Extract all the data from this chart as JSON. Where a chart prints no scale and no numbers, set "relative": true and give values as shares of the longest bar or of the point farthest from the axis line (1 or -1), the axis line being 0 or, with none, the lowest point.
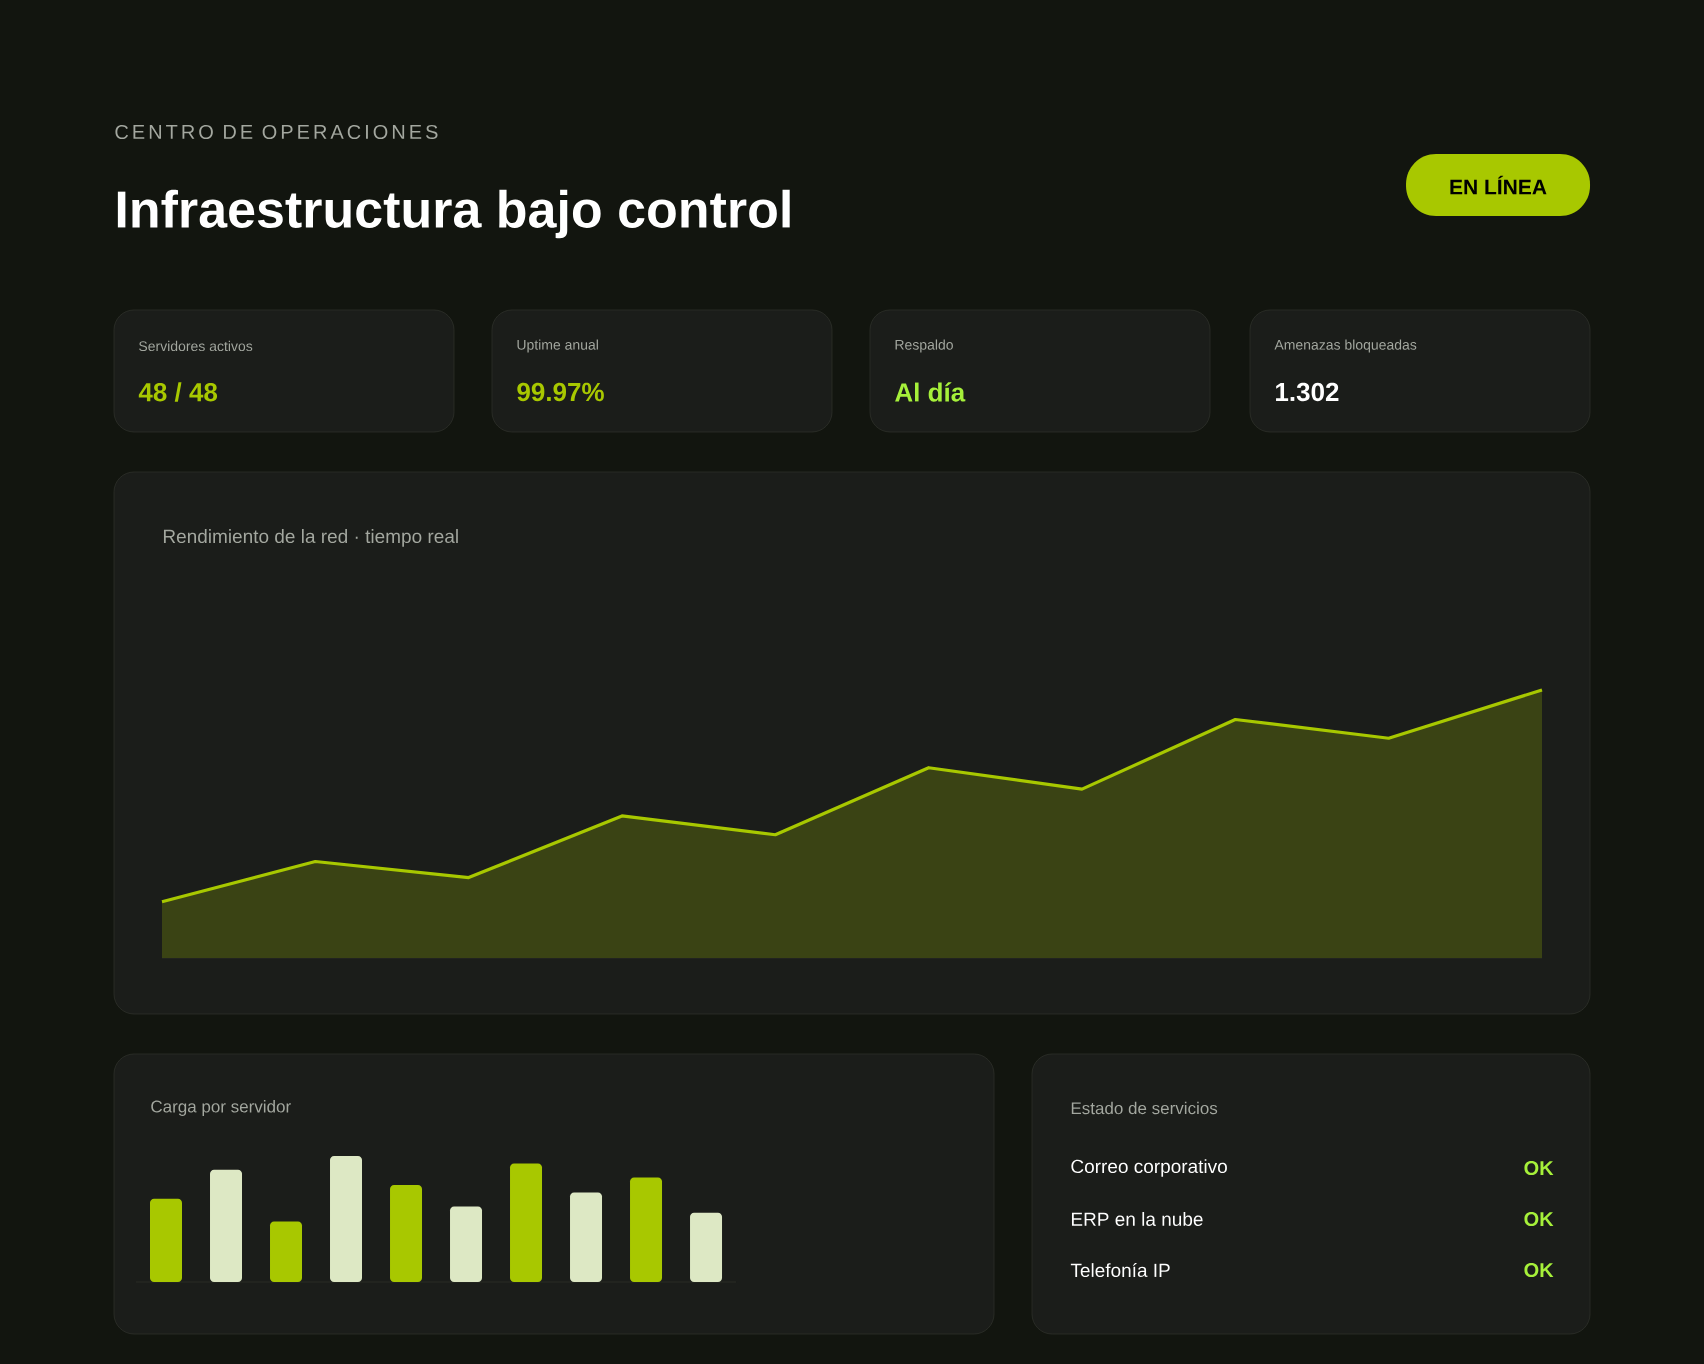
{
  "chart_data": [
    {
      "type": "other",
      "subtitle": "CENTRO DE OPERACIONES",
      "title": "Infraestructura bajo control",
      "annotations": [
        "EN LÍNEA",
        "Servidores activos",
        "48 / 48",
        "Uptime anual",
        "99.97%",
        "Respaldo",
        "Al día",
        "Amenazas bloqueadas",
        "1.302"
      ]
    },
    {
      "type": "area",
      "title": "Rendimiento de la red · tiempo real",
      "relative": true,
      "color": "#a8c800",
      "categories": [
        null,
        null,
        null,
        null,
        null,
        null,
        null,
        null,
        null,
        null
      ],
      "values": [
        0.21,
        0.36,
        0.3,
        0.53,
        0.46,
        0.71,
        0.63,
        0.89,
        0.82,
        1
      ]
    },
    {
      "type": "bar",
      "title": "Carga por servidor",
      "relative": true,
      "categories": [
        null,
        null,
        null,
        null,
        null,
        null,
        null,
        null,
        null,
        null
      ],
      "values": [
        0.66,
        0.89,
        0.48,
        1,
        0.77,
        0.6,
        0.94,
        0.71,
        0.83,
        0.55
      ],
      "colors": [
        "#a8c800",
        "#dde8c4",
        "#a8c800",
        "#dde8c4",
        "#a8c800",
        "#dde8c4",
        "#a8c800",
        "#dde8c4",
        "#a8c800",
        "#dde8c4"
      ]
    },
    {
      "type": "other",
      "title": "Estado de servicios",
      "annotations": [
        "Correo corporativo",
        "OK",
        "ERP en la nube",
        "OK",
        "Telefonía IP",
        "OK"
      ]
    }
  ]
}
